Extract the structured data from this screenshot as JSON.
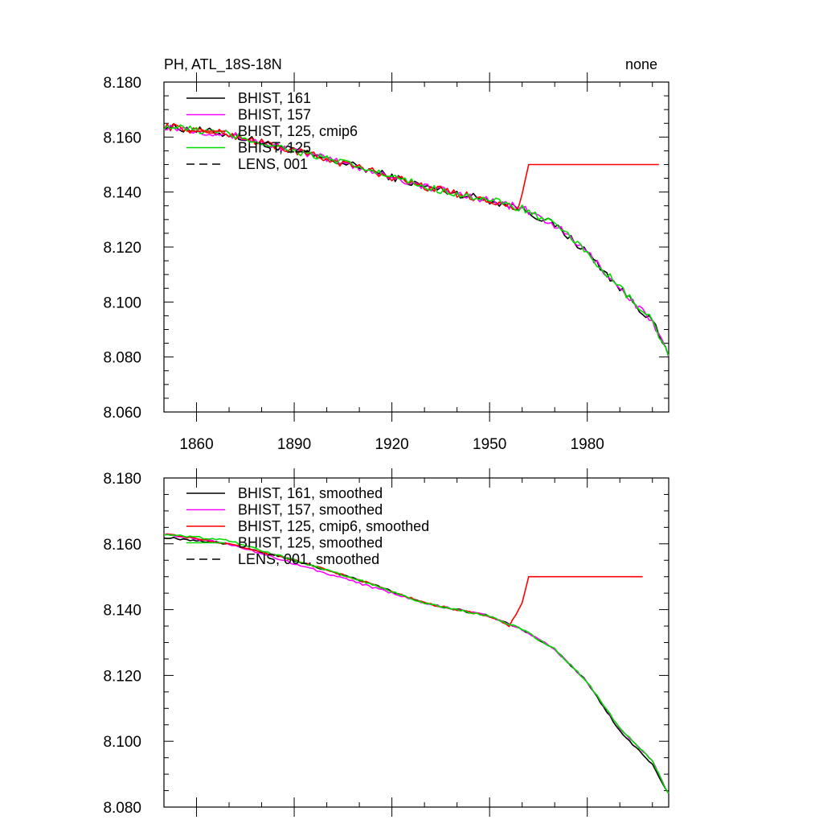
{
  "figure": {
    "title_left": "PH, ATL_18S-18N",
    "title_right": "none"
  },
  "colors": {
    "BHIST_161": "#000000",
    "BHIST_157": "#ff00ff",
    "BHIST_125_cmip6": "#ff0000",
    "BHIST_125": "#00dd00",
    "LENS_001": "#000000"
  },
  "chart_data": [
    {
      "type": "line",
      "panel": "top",
      "xlim": [
        1850,
        2005
      ],
      "ylim": [
        8.06,
        8.18
      ],
      "xticks": [
        "1860",
        "1890",
        "1920",
        "1950",
        "1980"
      ],
      "yticks": [
        "8.060",
        "8.080",
        "8.100",
        "8.120",
        "8.140",
        "8.160",
        "8.180"
      ],
      "legend_position": "top-left",
      "series": [
        {
          "name": "BHIST, 161",
          "color_key": "BHIST_161",
          "dash": false,
          "key_points": [
            [
              1850,
              8.164
            ],
            [
              1870,
              8.161
            ],
            [
              1890,
              8.155
            ],
            [
              1910,
              8.149
            ],
            [
              1930,
              8.142
            ],
            [
              1950,
              8.137
            ],
            [
              1960,
              8.134
            ],
            [
              1970,
              8.128
            ],
            [
              1980,
              8.118
            ],
            [
              1990,
              8.105
            ],
            [
              2000,
              8.093
            ],
            [
              2005,
              8.08
            ]
          ]
        },
        {
          "name": "BHIST, 157",
          "color_key": "BHIST_157",
          "dash": false,
          "key_points": [
            [
              1850,
              8.164
            ],
            [
              1870,
              8.161
            ],
            [
              1890,
              8.155
            ],
            [
              1910,
              8.149
            ],
            [
              1930,
              8.142
            ],
            [
              1950,
              8.137
            ],
            [
              1960,
              8.134
            ],
            [
              1970,
              8.128
            ],
            [
              1980,
              8.118
            ],
            [
              1990,
              8.105
            ],
            [
              2000,
              8.093
            ],
            [
              2005,
              8.08
            ]
          ]
        },
        {
          "name": "BHIST, 125, cmip6",
          "color_key": "BHIST_125_cmip6",
          "dash": false,
          "key_points": [
            [
              1850,
              8.164
            ],
            [
              1870,
              8.161
            ],
            [
              1890,
              8.155
            ],
            [
              1910,
              8.149
            ],
            [
              1930,
              8.142
            ],
            [
              1950,
              8.137
            ],
            [
              1959,
              8.134
            ],
            [
              1962,
              8.15
            ],
            [
              2002,
              8.15
            ]
          ]
        },
        {
          "name": "BHIST, 125",
          "color_key": "BHIST_125",
          "dash": false,
          "key_points": [
            [
              1850,
              8.164
            ],
            [
              1870,
              8.161
            ],
            [
              1890,
              8.155
            ],
            [
              1910,
              8.149
            ],
            [
              1930,
              8.142
            ],
            [
              1950,
              8.137
            ],
            [
              1960,
              8.134
            ],
            [
              1970,
              8.128
            ],
            [
              1980,
              8.118
            ],
            [
              1990,
              8.105
            ],
            [
              2000,
              8.093
            ],
            [
              2005,
              8.08
            ]
          ]
        },
        {
          "name": "LENS, 001",
          "color_key": "LENS_001",
          "dash": true,
          "key_points": []
        }
      ]
    },
    {
      "type": "line",
      "panel": "bottom",
      "xlim": [
        1850,
        2005
      ],
      "ylim": [
        8.08,
        8.18
      ],
      "xticks": [],
      "yticks": [
        "8.080",
        "8.100",
        "8.120",
        "8.140",
        "8.160",
        "8.180"
      ],
      "legend_position": "top-left",
      "series": [
        {
          "name": "BHIST, 161, smoothed",
          "color_key": "BHIST_161",
          "dash": false,
          "key_points": [
            [
              1850,
              8.162
            ],
            [
              1870,
              8.16
            ],
            [
              1890,
              8.155
            ],
            [
              1910,
              8.149
            ],
            [
              1930,
              8.142
            ],
            [
              1950,
              8.138
            ],
            [
              1960,
              8.134
            ],
            [
              1970,
              8.128
            ],
            [
              1980,
              8.118
            ],
            [
              1990,
              8.103
            ],
            [
              2000,
              8.093
            ],
            [
              2005,
              8.084
            ]
          ]
        },
        {
          "name": "BHIST, 157, smoothed",
          "color_key": "BHIST_157",
          "dash": false,
          "key_points": [
            [
              1850,
              8.163
            ],
            [
              1870,
              8.16
            ],
            [
              1890,
              8.154
            ],
            [
              1910,
              8.148
            ],
            [
              1930,
              8.142
            ],
            [
              1950,
              8.138
            ],
            [
              1960,
              8.134
            ],
            [
              1970,
              8.128
            ],
            [
              1980,
              8.118
            ],
            [
              1990,
              8.104
            ],
            [
              2000,
              8.094
            ],
            [
              2005,
              8.084
            ]
          ]
        },
        {
          "name": "BHIST, 125, cmip6, smoothed",
          "color_key": "BHIST_125_cmip6",
          "dash": false,
          "key_points": [
            [
              1850,
              8.163
            ],
            [
              1870,
              8.16
            ],
            [
              1890,
              8.155
            ],
            [
              1910,
              8.149
            ],
            [
              1930,
              8.142
            ],
            [
              1950,
              8.138
            ],
            [
              1956,
              8.135
            ],
            [
              1960,
              8.142
            ],
            [
              1962,
              8.15
            ],
            [
              1997,
              8.15
            ]
          ]
        },
        {
          "name": "BHIST, 125, smoothed",
          "color_key": "BHIST_125",
          "dash": false,
          "key_points": [
            [
              1850,
              8.163
            ],
            [
              1870,
              8.161
            ],
            [
              1890,
              8.155
            ],
            [
              1910,
              8.149
            ],
            [
              1930,
              8.142
            ],
            [
              1950,
              8.138
            ],
            [
              1960,
              8.134
            ],
            [
              1970,
              8.128
            ],
            [
              1980,
              8.118
            ],
            [
              1990,
              8.104
            ],
            [
              2000,
              8.094
            ],
            [
              2005,
              8.084
            ]
          ]
        },
        {
          "name": "LENS, 001, smoothed",
          "color_key": "LENS_001",
          "dash": true,
          "key_points": []
        }
      ]
    }
  ]
}
